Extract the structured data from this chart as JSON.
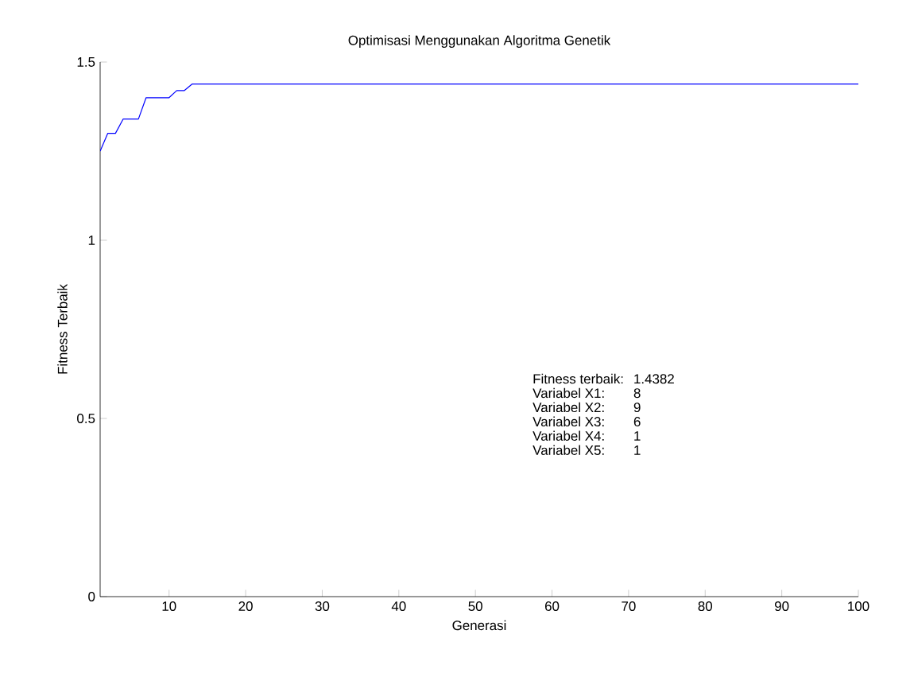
{
  "chart_data": {
    "type": "line",
    "title": "Optimisasi Menggunakan Algoritma Genetik",
    "xlabel": "Generasi",
    "ylabel": "Fitness Terbaik",
    "x": [
      1,
      2,
      3,
      4,
      5,
      6,
      7,
      8,
      9,
      10,
      11,
      12,
      13,
      100
    ],
    "series": [
      {
        "color": "#0000ff",
        "values": [
          1.25,
          1.3,
          1.3,
          1.34,
          1.34,
          1.34,
          1.4,
          1.4,
          1.4,
          1.4,
          1.42,
          1.42,
          1.4382,
          1.4382
        ]
      }
    ],
    "xlim": [
      1,
      100
    ],
    "ylim": [
      0,
      1.5
    ],
    "xticks": [
      10,
      20,
      30,
      40,
      50,
      60,
      70,
      80,
      90,
      100
    ],
    "yticks": [
      0,
      0.5,
      1,
      1.5
    ],
    "annotations": [
      "Fitness terbaik:",
      "1.4382",
      "Variabel X1:",
      "8",
      "Variabel X2:",
      "9",
      "Variabel X3:",
      "6",
      "Variabel X4:",
      "1",
      "Variabel X5:",
      "1"
    ],
    "grid": false,
    "marker": "none",
    "line_style": "solid"
  }
}
